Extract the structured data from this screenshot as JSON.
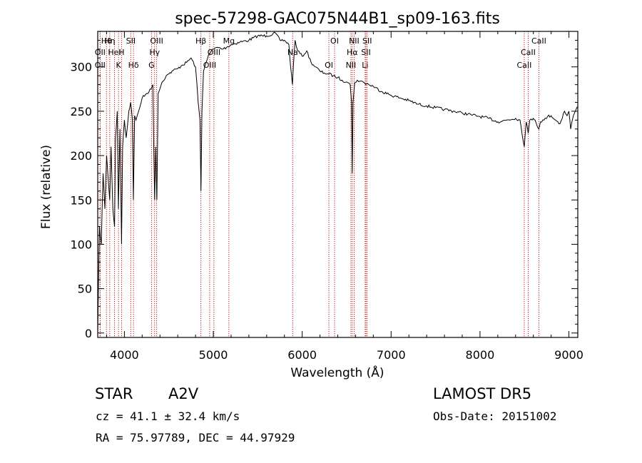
{
  "chart_data": {
    "type": "line",
    "title": "spec-57298-GAC075N44B1_sp09-163.fits",
    "xlabel": "Wavelength (Å)",
    "ylabel": "Flux (relative)",
    "xlim": [
      3700,
      9100
    ],
    "ylim": [
      -5,
      340
    ],
    "xticks": [
      4000,
      5000,
      6000,
      7000,
      8000,
      9000
    ],
    "yticks": [
      0,
      50,
      100,
      150,
      200,
      250,
      300
    ],
    "grid": false,
    "series": [
      {
        "x": [
          3700,
          3720,
          3740,
          3760,
          3780,
          3800,
          3820,
          3835,
          3850,
          3870,
          3889,
          3900,
          3920,
          3933,
          3950,
          3968,
          3980,
          4000,
          4020,
          4050,
          4070,
          4090,
          4101,
          4115,
          4130,
          4160,
          4200,
          4250,
          4300,
          4320,
          4340,
          4352,
          4365,
          4380,
          4420,
          4470,
          4500,
          4550,
          4600,
          4650,
          4700,
          4750,
          4800,
          4830,
          4850,
          4861,
          4872,
          4890,
          4920,
          4950,
          5000,
          5050,
          5100,
          5150,
          5200,
          5300,
          5400,
          5500,
          5600,
          5700,
          5750,
          5800,
          5850,
          5870,
          5890,
          5900,
          5920,
          5950,
          6000,
          6050,
          6100,
          6150,
          6200,
          6250,
          6300,
          6350,
          6400,
          6450,
          6500,
          6540,
          6555,
          6563,
          6572,
          6590,
          6620,
          6650,
          6700,
          6750,
          6800,
          6900,
          7000,
          7100,
          7200,
          7300,
          7400,
          7500,
          7600,
          7700,
          7800,
          7900,
          8000,
          8100,
          8200,
          8300,
          8400,
          8450,
          8498,
          8520,
          8542,
          8560,
          8600,
          8620,
          8662,
          8680,
          8720,
          8760,
          8800,
          8850,
          8900,
          8950,
          8980,
          9000,
          9020,
          9050,
          9080,
          9100
        ],
        "y": [
          0,
          120,
          100,
          180,
          140,
          200,
          170,
          150,
          210,
          140,
          120,
          220,
          250,
          140,
          230,
          100,
          210,
          240,
          220,
          250,
          260,
          240,
          150,
          245,
          240,
          250,
          265,
          270,
          275,
          280,
          150,
          210,
          150,
          270,
          282,
          290,
          292,
          296,
          298,
          302,
          305,
          310,
          300,
          260,
          240,
          160,
          250,
          295,
          305,
          315,
          320,
          322,
          320,
          322,
          325,
          328,
          330,
          335,
          335,
          338,
          330,
          330,
          325,
          300,
          280,
          300,
          330,
          318,
          312,
          318,
          305,
          300,
          295,
          293,
          292,
          290,
          288,
          285,
          283,
          280,
          260,
          180,
          260,
          282,
          285,
          284,
          282,
          280,
          278,
          272,
          268,
          265,
          262,
          258,
          256,
          254,
          252,
          250,
          248,
          246,
          244,
          242,
          238,
          240,
          242,
          240,
          210,
          238,
          225,
          240,
          242,
          240,
          230,
          238,
          240,
          244,
          245,
          240,
          236,
          250,
          245,
          250,
          230,
          245,
          252,
          255
        ]
      }
    ],
    "lines": [
      {
        "label": "Hθ",
        "x": 3798
      },
      {
        "label": "OII",
        "x": 3727
      },
      {
        "label": "OII",
        "x": 3727
      },
      {
        "label": "Hη",
        "x": 3835
      },
      {
        "label": "HeI",
        "x": 3889
      },
      {
        "label": "K",
        "x": 3934
      },
      {
        "label": "SII",
        "x": 4072
      },
      {
        "label": "H",
        "x": 3968
      },
      {
        "label": "Hδ",
        "x": 4102
      },
      {
        "label": "OIII",
        "x": 4363
      },
      {
        "label": "Hγ",
        "x": 4340
      },
      {
        "label": "G",
        "x": 4305
      },
      {
        "label": "Hβ",
        "x": 4861
      },
      {
        "label": "OIII",
        "x": 5007
      },
      {
        "label": "OIII",
        "x": 4959
      },
      {
        "label": "Mg",
        "x": 5175
      },
      {
        "label": "Na",
        "x": 5893
      },
      {
        "label": "OI",
        "x": 6300
      },
      {
        "label": "OI",
        "x": 6364
      },
      {
        "label": "Hα",
        "x": 6563
      },
      {
        "label": "NII",
        "x": 6548
      },
      {
        "label": "NII",
        "x": 6584
      },
      {
        "label": "SII",
        "x": 6717
      },
      {
        "label": "Li",
        "x": 6708
      },
      {
        "label": "SII",
        "x": 6731
      },
      {
        "label": "CaII",
        "x": 8542
      },
      {
        "label": "CaII",
        "x": 8498
      },
      {
        "label": "CaII",
        "x": 8662
      }
    ]
  },
  "info": {
    "object_type": "STAR",
    "subclass": "A2V",
    "survey": "LAMOST DR5",
    "velocity": "cz = 41.1 ± 32.4 km/s",
    "obs_date": "Obs-Date: 20151002",
    "coordinates": "RA =  75.97789, DEC =  44.97929"
  },
  "colors": {
    "line": "#000000",
    "marker": "#c00000",
    "background": "#ffffff"
  }
}
